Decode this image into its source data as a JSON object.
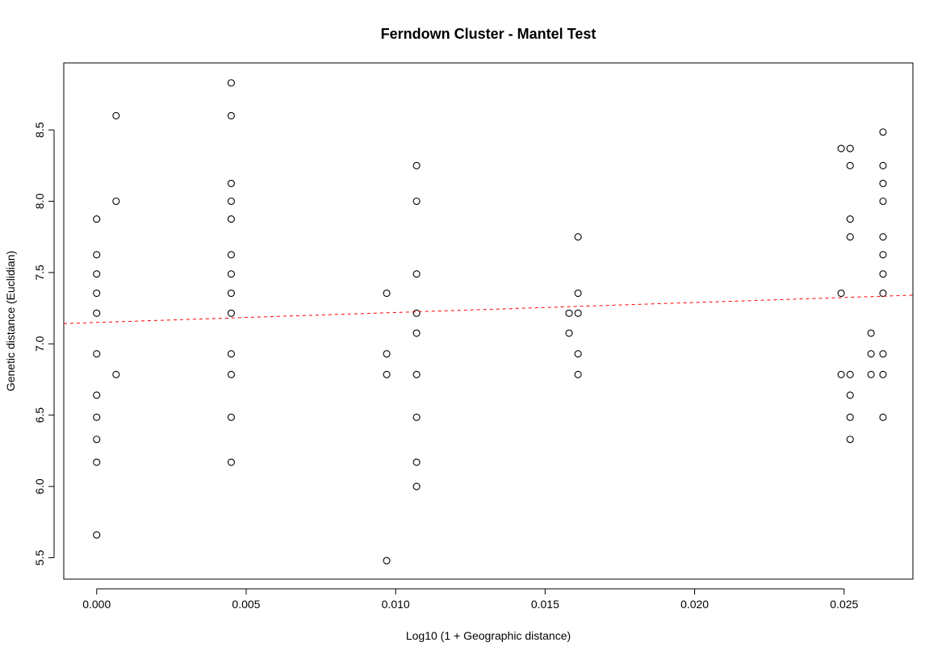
{
  "chart_data": {
    "type": "scatter",
    "title": "Ferndown Cluster - Mantel Test",
    "xlabel": "Log10 (1 + Geographic distance)",
    "ylabel": "Genetic distance (Euclidian)",
    "xlim": [
      -0.0011,
      0.0273
    ],
    "ylim": [
      5.35,
      8.97
    ],
    "x_ticks": [
      0.0,
      0.005,
      0.01,
      0.015,
      0.02,
      0.025
    ],
    "x_tick_labels": [
      "0.000",
      "0.005",
      "0.010",
      "0.015",
      "0.020",
      "0.025"
    ],
    "y_ticks": [
      5.5,
      6.0,
      6.5,
      7.0,
      7.5,
      8.0,
      8.5
    ],
    "y_tick_labels": [
      "5.5",
      "6.0",
      "6.5",
      "7.0",
      "7.5",
      "8.0",
      "8.5"
    ],
    "grid": false,
    "legend": "none",
    "point_style": "open-circle",
    "point_color": "#000000",
    "trend_line": {
      "style": "dashed",
      "color": "#ff0000",
      "intercept": 7.15,
      "slope": 7.0
    },
    "points": [
      {
        "x": 0.0,
        "y": 7.875
      },
      {
        "x": 0.0,
        "y": 7.625
      },
      {
        "x": 0.0,
        "y": 7.49
      },
      {
        "x": 0.0,
        "y": 7.355
      },
      {
        "x": 0.0,
        "y": 7.215
      },
      {
        "x": 0.0,
        "y": 6.93
      },
      {
        "x": 0.0,
        "y": 6.64
      },
      {
        "x": 0.0,
        "y": 6.485
      },
      {
        "x": 0.0,
        "y": 6.33
      },
      {
        "x": 0.0,
        "y": 6.17
      },
      {
        "x": 0.0,
        "y": 5.66
      },
      {
        "x": 0.00065,
        "y": 8.6
      },
      {
        "x": 0.00065,
        "y": 8.0
      },
      {
        "x": 0.00065,
        "y": 6.785
      },
      {
        "x": 0.0045,
        "y": 8.83
      },
      {
        "x": 0.0045,
        "y": 8.6
      },
      {
        "x": 0.0045,
        "y": 8.125
      },
      {
        "x": 0.0045,
        "y": 8.0
      },
      {
        "x": 0.0045,
        "y": 7.875
      },
      {
        "x": 0.0045,
        "y": 7.625
      },
      {
        "x": 0.0045,
        "y": 7.49
      },
      {
        "x": 0.0045,
        "y": 7.355
      },
      {
        "x": 0.0045,
        "y": 7.215
      },
      {
        "x": 0.0045,
        "y": 6.93
      },
      {
        "x": 0.0045,
        "y": 6.785
      },
      {
        "x": 0.0045,
        "y": 6.485
      },
      {
        "x": 0.0045,
        "y": 6.17
      },
      {
        "x": 0.0097,
        "y": 7.355
      },
      {
        "x": 0.0097,
        "y": 6.93
      },
      {
        "x": 0.0097,
        "y": 6.785
      },
      {
        "x": 0.0097,
        "y": 5.48
      },
      {
        "x": 0.0107,
        "y": 8.25
      },
      {
        "x": 0.0107,
        "y": 8.0
      },
      {
        "x": 0.0107,
        "y": 7.49
      },
      {
        "x": 0.0107,
        "y": 7.215
      },
      {
        "x": 0.0107,
        "y": 7.075
      },
      {
        "x": 0.0107,
        "y": 6.785
      },
      {
        "x": 0.0107,
        "y": 6.485
      },
      {
        "x": 0.0107,
        "y": 6.17
      },
      {
        "x": 0.0107,
        "y": 6.0
      },
      {
        "x": 0.0158,
        "y": 7.215
      },
      {
        "x": 0.0158,
        "y": 7.075
      },
      {
        "x": 0.0161,
        "y": 7.75
      },
      {
        "x": 0.0161,
        "y": 7.355
      },
      {
        "x": 0.0161,
        "y": 7.215
      },
      {
        "x": 0.0161,
        "y": 6.93
      },
      {
        "x": 0.0161,
        "y": 6.785
      },
      {
        "x": 0.0249,
        "y": 8.37
      },
      {
        "x": 0.0249,
        "y": 7.355
      },
      {
        "x": 0.0249,
        "y": 6.785
      },
      {
        "x": 0.0252,
        "y": 8.37
      },
      {
        "x": 0.0252,
        "y": 8.25
      },
      {
        "x": 0.0252,
        "y": 7.875
      },
      {
        "x": 0.0252,
        "y": 7.75
      },
      {
        "x": 0.0252,
        "y": 6.785
      },
      {
        "x": 0.0252,
        "y": 6.64
      },
      {
        "x": 0.0252,
        "y": 6.485
      },
      {
        "x": 0.0252,
        "y": 6.33
      },
      {
        "x": 0.0259,
        "y": 7.075
      },
      {
        "x": 0.0259,
        "y": 6.93
      },
      {
        "x": 0.0259,
        "y": 6.785
      },
      {
        "x": 0.0263,
        "y": 8.485
      },
      {
        "x": 0.0263,
        "y": 8.25
      },
      {
        "x": 0.0263,
        "y": 8.125
      },
      {
        "x": 0.0263,
        "y": 8.0
      },
      {
        "x": 0.0263,
        "y": 7.75
      },
      {
        "x": 0.0263,
        "y": 7.625
      },
      {
        "x": 0.0263,
        "y": 7.49
      },
      {
        "x": 0.0263,
        "y": 7.355
      },
      {
        "x": 0.0263,
        "y": 6.93
      },
      {
        "x": 0.0263,
        "y": 6.785
      },
      {
        "x": 0.0263,
        "y": 6.485
      }
    ]
  }
}
